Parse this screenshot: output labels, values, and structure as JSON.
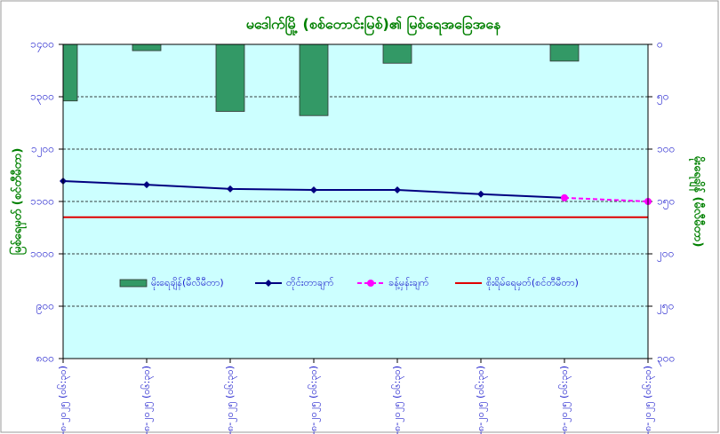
{
  "chart_data": {
    "type": "combo",
    "title": "မဒေါက်မြို့ (စစ်တောင်းမြစ်)၏ မြစ်ရေအခြေအနေ",
    "ylabel": "မြစ်ရေမှတ် (စင်တီမီတာ)",
    "y2label": "မိုးရေချိန် (မီလီမီတာ)",
    "categories": [
      "၃-၈-၂၀၂၅ (၀၆:၃၀)",
      "၄-၈-၂၀၂၅ (၀၆:၃၀)",
      "၅-၈-၂၀၂၅ (၀၆:၃၀)",
      "၆-၈-၂၀၂၅ (၀၆:၃၀)",
      "၇-၈-၂၀၂၅ (၀၆:၃၀)",
      "၈-၈-၂၀၂၅ (၀၆:၃၀)",
      "၉-၈-၂၀၂၅ (၀၆:၃၀)",
      "၁၀-၈-၂၀၂၅ (၀၆:၃၀)"
    ],
    "series": [
      {
        "name": "မိုးရေချိန်(မီလီမီတာ)",
        "type": "bar",
        "axis": "y2",
        "color": "#339966",
        "values": [
          54,
          6,
          64,
          68,
          18,
          0,
          16,
          0
        ]
      },
      {
        "name": "တိုင်းတာချက်",
        "type": "line",
        "color": "#000080",
        "marker": "diamond",
        "values": [
          1139,
          1132,
          1124,
          1122,
          1122,
          1114,
          1107,
          null
        ]
      },
      {
        "name": "ခန့်မှန်းချက်",
        "type": "line",
        "color": "#ff00ff",
        "dashed": true,
        "marker": "circle",
        "values": [
          null,
          null,
          null,
          null,
          null,
          null,
          1107,
          1100
        ]
      },
      {
        "name": "စိုးရိမ်ရေမှတ်(စင်တီမီတာ)",
        "type": "line",
        "color": "#e00000",
        "marker": "none",
        "values": [
          1070,
          1070,
          1070,
          1070,
          1070,
          1070,
          1070,
          1070
        ]
      }
    ],
    "ylim": [
      800,
      1400
    ],
    "yticks": [
      {
        "value": 800,
        "label": "၈၀၀"
      },
      {
        "value": 900,
        "label": "၉၀၀"
      },
      {
        "value": 1000,
        "label": "၁၀၀၀"
      },
      {
        "value": 1100,
        "label": "၁၁၀၀"
      },
      {
        "value": 1200,
        "label": "၁၂၀၀"
      },
      {
        "value": 1300,
        "label": "၁၃၀၀"
      },
      {
        "value": 1400,
        "label": "၁၄၀၀"
      }
    ],
    "y2lim": [
      0,
      300
    ],
    "y2_inverted": true,
    "y2ticks": [
      {
        "value": 0,
        "label": "၀"
      },
      {
        "value": 50,
        "label": "၅၀"
      },
      {
        "value": 100,
        "label": "၁၀၀"
      },
      {
        "value": 150,
        "label": "၁၅၀"
      },
      {
        "value": 200,
        "label": "၂၀၀"
      },
      {
        "value": 250,
        "label": "၂၅၀"
      },
      {
        "value": 300,
        "label": "၃၀၀"
      }
    ],
    "grid": true,
    "plot_background": "#ccffff"
  }
}
